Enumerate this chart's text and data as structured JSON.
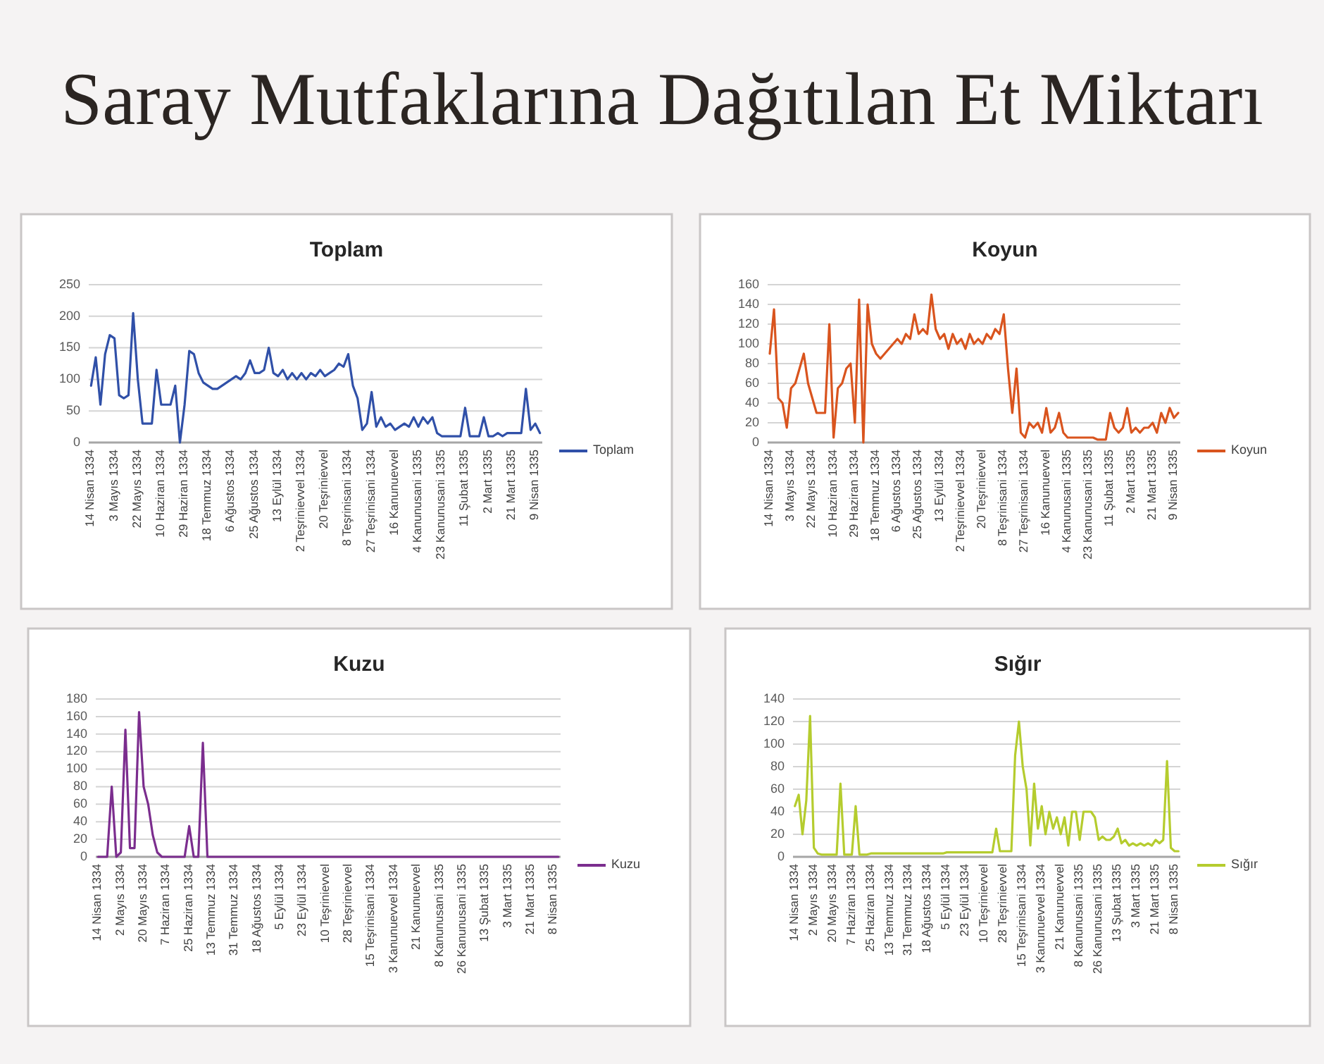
{
  "chart_data": [
    {
      "type": "other",
      "title": "Saray Mutfaklarına Dağıtılan Et Miktarı"
    },
    {
      "type": "line",
      "title": "Toplam",
      "categories": [
        "14 Nisan 1334",
        null,
        null,
        null,
        null,
        "3 Mayıs 1334",
        null,
        null,
        null,
        null,
        "22 Mayıs 1334",
        null,
        null,
        null,
        null,
        "10 Haziran 1334",
        null,
        null,
        null,
        null,
        "29 Haziran 1334",
        null,
        null,
        null,
        null,
        "18 Temmuz 1334",
        null,
        null,
        null,
        null,
        "6 Ağustos 1334",
        null,
        null,
        null,
        null,
        "25 Ağustos 1334",
        null,
        null,
        null,
        null,
        "13 Eylül 1334",
        null,
        null,
        null,
        null,
        "2 Teşrinievvel 1334",
        null,
        null,
        null,
        null,
        "20 Teşrinievvel",
        null,
        null,
        null,
        null,
        "8 Teşrinisani 1334",
        null,
        null,
        null,
        null,
        "27 Teşrinisani 1334",
        null,
        null,
        null,
        null,
        "16 Kanunuevvel",
        null,
        null,
        null,
        null,
        "4 Kanunusani 1335",
        null,
        null,
        null,
        null,
        "23 Kanunusani 1335",
        null,
        null,
        null,
        null,
        "11 Şubat 1335",
        null,
        null,
        null,
        null,
        "2 Mart 1335",
        null,
        null,
        null,
        null,
        "21 Mart 1335",
        null,
        null,
        null,
        null,
        "9 Nisan 1335",
        null
      ],
      "series": [
        {
          "name": "Toplam",
          "color": "#3050a8",
          "values": [
            90,
            135,
            60,
            140,
            170,
            165,
            75,
            70,
            75,
            205,
            100,
            30,
            30,
            30,
            115,
            60,
            60,
            60,
            90,
            0,
            60,
            145,
            140,
            110,
            95,
            90,
            85,
            85,
            90,
            95,
            100,
            105,
            100,
            110,
            130,
            110,
            110,
            115,
            150,
            110,
            105,
            115,
            100,
            110,
            100,
            110,
            100,
            110,
            105,
            115,
            105,
            110,
            115,
            125,
            120,
            140,
            90,
            70,
            20,
            30,
            80,
            25,
            40,
            25,
            30,
            20,
            25,
            30,
            25,
            40,
            25,
            40,
            30,
            40,
            15,
            10,
            10,
            10,
            10,
            10,
            55,
            10,
            10,
            10,
            40,
            10,
            10,
            15,
            10,
            15,
            15,
            15,
            15,
            85,
            20,
            30,
            15
          ]
        }
      ],
      "ylim": [
        0,
        250
      ],
      "yticks": [
        0,
        50,
        100,
        150,
        200,
        250
      ],
      "grid": "y",
      "legend": "right"
    },
    {
      "type": "line",
      "title": "Koyun",
      "categories": [
        "14 Nisan 1334",
        null,
        null,
        null,
        null,
        "3 Mayıs 1334",
        null,
        null,
        null,
        null,
        "22 Mayıs 1334",
        null,
        null,
        null,
        null,
        "10 Haziran 1334",
        null,
        null,
        null,
        null,
        "29 Haziran 1334",
        null,
        null,
        null,
        null,
        "18 Temmuz 1334",
        null,
        null,
        null,
        null,
        "6 Ağustos 1334",
        null,
        null,
        null,
        null,
        "25 Ağustos 1334",
        null,
        null,
        null,
        null,
        "13 Eylül 1334",
        null,
        null,
        null,
        null,
        "2 Teşrinievvel 1334",
        null,
        null,
        null,
        null,
        "20 Teşrinievvel",
        null,
        null,
        null,
        null,
        "8 Teşrinisani 1334",
        null,
        null,
        null,
        null,
        "27 Teşrinisani 1334",
        null,
        null,
        null,
        null,
        "16 Kanunuevvel",
        null,
        null,
        null,
        null,
        "4 Kanunusani 1335",
        null,
        null,
        null,
        null,
        "23 Kanunusani 1335",
        null,
        null,
        null,
        null,
        "11 Şubat 1335",
        null,
        null,
        null,
        null,
        "2 Mart 1335",
        null,
        null,
        null,
        null,
        "21 Mart 1335",
        null,
        null,
        null,
        null,
        "9 Nisan 1335",
        null
      ],
      "series": [
        {
          "name": "Koyun",
          "color": "#d9541e",
          "values": [
            90,
            135,
            45,
            40,
            15,
            55,
            60,
            75,
            90,
            60,
            45,
            30,
            30,
            30,
            120,
            5,
            55,
            60,
            75,
            80,
            20,
            145,
            0,
            140,
            100,
            90,
            85,
            90,
            95,
            100,
            105,
            100,
            110,
            105,
            130,
            110,
            115,
            110,
            150,
            115,
            105,
            110,
            95,
            110,
            100,
            105,
            95,
            110,
            100,
            105,
            100,
            110,
            105,
            115,
            110,
            130,
            75,
            30,
            75,
            10,
            5,
            20,
            15,
            20,
            10,
            35,
            10,
            15,
            30,
            10,
            5,
            5,
            5,
            5,
            5,
            5,
            5,
            3,
            3,
            3,
            30,
            15,
            10,
            15,
            35,
            10,
            15,
            10,
            15,
            15,
            20,
            10,
            30,
            20,
            35,
            25,
            30
          ]
        }
      ],
      "ylim": [
        0,
        160
      ],
      "yticks": [
        0,
        20,
        40,
        60,
        80,
        100,
        120,
        140,
        160
      ],
      "grid": "y",
      "legend": "right"
    },
    {
      "type": "line",
      "title": "Kuzu",
      "categories": [
        "14 Nisan 1334",
        null,
        null,
        null,
        null,
        "2 Mayıs 1334",
        null,
        null,
        null,
        null,
        "20 Mayıs 1334",
        null,
        null,
        null,
        null,
        "7 Haziran 1334",
        null,
        null,
        null,
        null,
        "25 Haziran 1334",
        null,
        null,
        null,
        null,
        "13 Temmuz 1334",
        null,
        null,
        null,
        null,
        "31 Temmuz 1334",
        null,
        null,
        null,
        null,
        "18 Ağustos 1334",
        null,
        null,
        null,
        null,
        "5 Eylül 1334",
        null,
        null,
        null,
        null,
        "23 Eylül 1334",
        null,
        null,
        null,
        null,
        "10 Teşrinievvel",
        null,
        null,
        null,
        null,
        "28 Teşrinievvel",
        null,
        null,
        null,
        null,
        "15 Teşrinisani 1334",
        null,
        null,
        null,
        null,
        "3 Kanunuevvel 1334",
        null,
        null,
        null,
        null,
        "21 Kanunuevvel",
        null,
        null,
        null,
        null,
        "8 Kanunusani 1335",
        null,
        null,
        null,
        null,
        "26 Kanunusani 1335",
        null,
        null,
        null,
        null,
        "13 Şubat 1335",
        null,
        null,
        null,
        null,
        "3 Mart 1335",
        null,
        null,
        null,
        null,
        "21 Mart 1335",
        null,
        null,
        null,
        null,
        "8 Nisan 1335",
        null
      ],
      "series": [
        {
          "name": "Kuzu",
          "color": "#7b2d8e",
          "values": [
            0,
            0,
            0,
            80,
            0,
            5,
            145,
            10,
            10,
            165,
            80,
            60,
            25,
            5,
            0,
            0,
            0,
            0,
            0,
            0,
            35,
            0,
            0,
            130,
            0,
            0,
            0,
            0,
            0,
            0,
            0,
            0,
            0,
            0,
            0,
            0,
            0,
            0,
            0,
            0,
            0,
            0,
            0,
            0,
            0,
            0,
            0,
            0,
            0,
            0,
            0,
            0,
            0,
            0,
            0,
            0,
            0,
            0,
            0,
            0,
            0,
            0,
            0,
            0,
            0,
            0,
            0,
            0,
            0,
            0,
            0,
            0,
            0,
            0,
            0,
            0,
            0,
            0,
            0,
            0,
            0,
            0,
            0,
            0,
            0,
            0,
            0,
            0,
            0,
            0,
            0,
            0,
            0,
            0,
            0,
            0,
            0,
            0,
            0,
            0,
            0,
            0
          ]
        }
      ],
      "ylim": [
        0,
        180
      ],
      "yticks": [
        0,
        20,
        40,
        60,
        80,
        100,
        120,
        140,
        160,
        180
      ],
      "grid": "y",
      "legend": "right"
    },
    {
      "type": "line",
      "title": "Sığır",
      "categories": [
        "14 Nisan 1334",
        null,
        null,
        null,
        null,
        "2 Mayıs 1334",
        null,
        null,
        null,
        null,
        "20 Mayıs 1334",
        null,
        null,
        null,
        null,
        "7 Haziran 1334",
        null,
        null,
        null,
        null,
        "25 Haziran 1334",
        null,
        null,
        null,
        null,
        "13 Temmuz 1334",
        null,
        null,
        null,
        null,
        "31 Temmuz 1334",
        null,
        null,
        null,
        null,
        "18 Ağustos 1334",
        null,
        null,
        null,
        null,
        "5 Eylül 1334",
        null,
        null,
        null,
        null,
        "23 Eylül 1334",
        null,
        null,
        null,
        null,
        "10 Teşrinievvel",
        null,
        null,
        null,
        null,
        "28 Teşrinievvel",
        null,
        null,
        null,
        null,
        "15 Teşrinisani 1334",
        null,
        null,
        null,
        null,
        "3 Kanunuevvel 1334",
        null,
        null,
        null,
        null,
        "21 Kanunuevvel",
        null,
        null,
        null,
        null,
        "8 Kanunusani 1335",
        null,
        null,
        null,
        null,
        "26 Kanunusani 1335",
        null,
        null,
        null,
        null,
        "13 Şubat 1335",
        null,
        null,
        null,
        null,
        "3 Mart 1335",
        null,
        null,
        null,
        null,
        "21 Mart 1335",
        null,
        null,
        null,
        null,
        "8 Nisan 1335",
        null
      ],
      "series": [
        {
          "name": "Sığır",
          "color": "#b5cc2e",
          "values": [
            45,
            55,
            20,
            50,
            125,
            8,
            3,
            2,
            2,
            2,
            2,
            2,
            65,
            2,
            2,
            2,
            45,
            2,
            2,
            2,
            3,
            3,
            3,
            3,
            3,
            3,
            3,
            3,
            3,
            3,
            3,
            3,
            3,
            3,
            3,
            3,
            3,
            3,
            3,
            3,
            4,
            4,
            4,
            4,
            4,
            4,
            4,
            4,
            4,
            4,
            4,
            4,
            4,
            25,
            5,
            5,
            5,
            5,
            90,
            120,
            80,
            60,
            10,
            65,
            25,
            45,
            20,
            40,
            25,
            35,
            20,
            35,
            10,
            40,
            40,
            15,
            40,
            40,
            40,
            35,
            15,
            18,
            15,
            15,
            18,
            25,
            12,
            15,
            10,
            12,
            10,
            12,
            10,
            12,
            10,
            15,
            12,
            15,
            85,
            8,
            5,
            5
          ]
        }
      ],
      "ylim": [
        0,
        140
      ],
      "yticks": [
        0,
        20,
        40,
        60,
        80,
        100,
        120,
        140
      ],
      "grid": "y",
      "legend": "right"
    }
  ]
}
